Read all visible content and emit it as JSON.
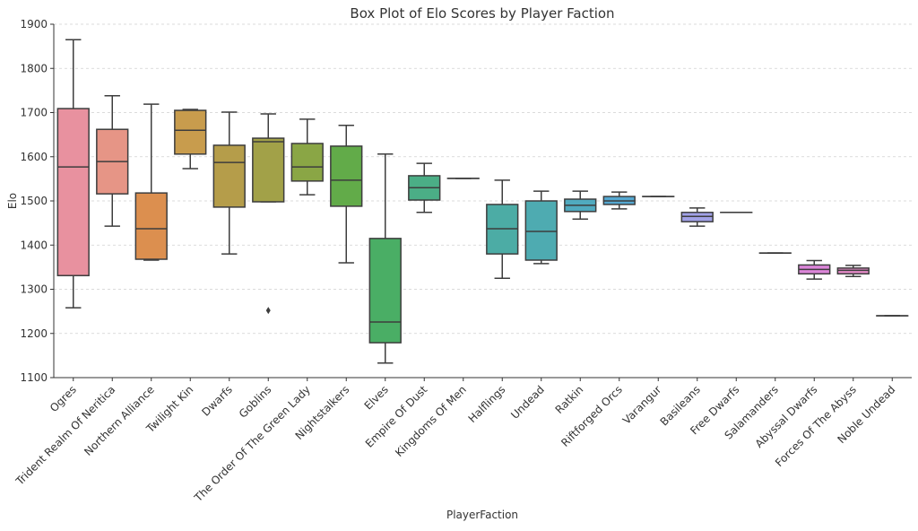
{
  "chart_data": {
    "type": "box",
    "title": "Box Plot of Elo Scores by Player Faction",
    "xlabel": "PlayerFaction",
    "ylabel": "Elo",
    "ylim": [
      1100,
      1900
    ],
    "yticks": [
      1100,
      1200,
      1300,
      1400,
      1500,
      1600,
      1700,
      1800,
      1900
    ],
    "grid": "horizontal dashed",
    "categories": [
      "Ogres",
      "Trident Realm Of Neritica",
      "Northern Alliance",
      "Twilight Kin",
      "Dwarfs",
      "Goblins",
      "The Order Of The Green Lady",
      "Nightstalkers",
      "Elves",
      "Empire Of Dust",
      "Kingdoms Of Men",
      "Halflings",
      "Undead",
      "Ratkin",
      "Riftforged Orcs",
      "Varangur",
      "Basileans",
      "Free Dwarfs",
      "Salamanders",
      "Abyssal Dwarfs",
      "Forces Of The Abyss",
      "Noble Undead"
    ],
    "boxes": [
      {
        "min": 1258,
        "q1": 1331,
        "median": 1577,
        "q3": 1709,
        "max": 1865,
        "outliers": [],
        "color": "#e8919f"
      },
      {
        "min": 1443,
        "q1": 1516,
        "median": 1589,
        "q3": 1662,
        "max": 1738,
        "outliers": [],
        "color": "#e69586"
      },
      {
        "min": 1366,
        "q1": 1368,
        "median": 1437,
        "q3": 1518,
        "max": 1719,
        "outliers": [],
        "color": "#dc8f4f"
      },
      {
        "min": 1573,
        "q1": 1606,
        "median": 1660,
        "q3": 1705,
        "max": 1707,
        "outliers": [],
        "color": "#c89c4d"
      },
      {
        "min": 1380,
        "q1": 1486,
        "median": 1587,
        "q3": 1626,
        "max": 1701,
        "outliers": [],
        "color": "#b59d4a"
      },
      {
        "min": 1498,
        "q1": 1498,
        "median": 1634,
        "q3": 1642,
        "max": 1697,
        "outliers": [
          1252
        ],
        "color": "#a2a148"
      },
      {
        "min": 1514,
        "q1": 1545,
        "median": 1577,
        "q3": 1630,
        "max": 1685,
        "outliers": [],
        "color": "#8aa645"
      },
      {
        "min": 1360,
        "q1": 1488,
        "median": 1547,
        "q3": 1624,
        "max": 1671,
        "outliers": [],
        "color": "#62ab49"
      },
      {
        "min": 1133,
        "q1": 1179,
        "median": 1226,
        "q3": 1415,
        "max": 1606,
        "outliers": [],
        "color": "#4aae65"
      },
      {
        "min": 1474,
        "q1": 1502,
        "median": 1530,
        "q3": 1557,
        "max": 1585,
        "outliers": [],
        "color": "#4bae86"
      },
      {
        "min": 1551,
        "q1": 1551,
        "median": 1551,
        "q3": 1551,
        "max": 1551,
        "outliers": [],
        "color": "#4bad98"
      },
      {
        "min": 1325,
        "q1": 1380,
        "median": 1437,
        "q3": 1492,
        "max": 1547,
        "outliers": [],
        "color": "#4caca5"
      },
      {
        "min": 1358,
        "q1": 1366,
        "median": 1431,
        "q3": 1500,
        "max": 1522,
        "outliers": [],
        "color": "#4eabb1"
      },
      {
        "min": 1459,
        "q1": 1476,
        "median": 1490,
        "q3": 1504,
        "max": 1522,
        "outliers": [],
        "color": "#50aabf"
      },
      {
        "min": 1482,
        "q1": 1492,
        "median": 1500,
        "q3": 1510,
        "max": 1520,
        "outliers": [],
        "color": "#55a8d1"
      },
      {
        "min": 1510,
        "q1": 1510,
        "median": 1510,
        "q3": 1510,
        "max": 1510,
        "outliers": [],
        "color": "#7aa2e0"
      },
      {
        "min": 1443,
        "q1": 1453,
        "median": 1465,
        "q3": 1474,
        "max": 1484,
        "outliers": [],
        "color": "#a1a1e6"
      },
      {
        "min": 1474,
        "q1": 1474,
        "median": 1474,
        "q3": 1474,
        "max": 1474,
        "outliers": [],
        "color": "#b698e4"
      },
      {
        "min": 1382,
        "q1": 1382,
        "median": 1382,
        "q3": 1382,
        "max": 1382,
        "outliers": [],
        "color": "#c993e0"
      },
      {
        "min": 1323,
        "q1": 1335,
        "median": 1345,
        "q3": 1355,
        "max": 1365,
        "outliers": [],
        "color": "#dc86d9"
      },
      {
        "min": 1329,
        "q1": 1335,
        "median": 1343,
        "q3": 1348,
        "max": 1354,
        "outliers": [],
        "color": "#e389c6"
      },
      {
        "min": 1240,
        "q1": 1240,
        "median": 1240,
        "q3": 1240,
        "max": 1240,
        "outliers": [],
        "color": "#e78cb4"
      }
    ]
  }
}
